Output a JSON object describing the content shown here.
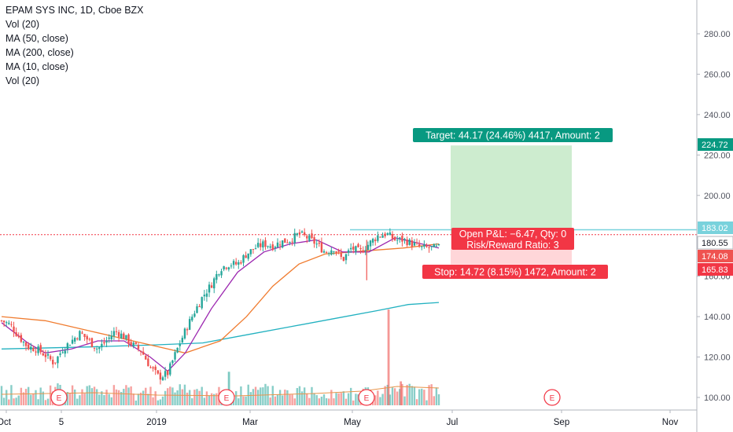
{
  "legend": {
    "title": "EPAM SYS INC, 1D, Cboe BZX",
    "items": [
      "Vol (20)",
      "MA (50, close)",
      "MA (200, close)",
      "MA (10, close)",
      "Vol (20)"
    ]
  },
  "colors": {
    "target": "#089981",
    "stop": "#f23645",
    "profit_zone": "#cdeccf",
    "loss_zone": "#ffd6d9",
    "up_candle": "#26a69a",
    "down_candle": "#ef5350",
    "ma50": "#f07c30",
    "ma200": "#22b1c0",
    "ma10": "#9c27b0",
    "vol_ma": "#e8944a",
    "entry_line": "#79d2dc"
  },
  "position": {
    "target_label": "Target: 44.17 (24.46%) 4417, Amount: 2",
    "pnl_label": "Open P&L: −6.47, Qty: 0",
    "rr_label": "Risk/Reward Ratio: 3",
    "stop_label": "Stop: 14.72 (8.15%) 1472, Amount: 2"
  },
  "chart_data": {
    "type": "candlestick",
    "title": "EPAM SYS INC, 1D, Cboe BZX",
    "y_axis": {
      "ticks": [
        "280.00",
        "260.00",
        "240.00",
        "220.00",
        "200.00",
        "160.00",
        "140.00",
        "120.00",
        "100.00"
      ],
      "ylim": [
        96,
        295
      ]
    },
    "x_axis": {
      "ticks": [
        "Oct",
        "5",
        "2019",
        "Mar",
        "May",
        "Jul",
        "Sep",
        "Nov"
      ]
    },
    "price_labels": [
      {
        "text": "224.72",
        "value": 224.72,
        "color": "#089981"
      },
      {
        "text": "183.02",
        "value": 183.02,
        "color": "#79d2dc"
      },
      {
        "text": "180.55",
        "value": 180.55,
        "color": "#ffffff"
      },
      {
        "text": "174.08",
        "value": 174.08,
        "color": "#ef5350"
      },
      {
        "text": "165.83",
        "value": 165.83,
        "color": "#f23645"
      }
    ],
    "position": {
      "entry": 180.55,
      "target": 224.72,
      "stop": 165.83,
      "current": 174.08
    },
    "close_path": [
      [
        0.0,
        138
      ],
      [
        0.02,
        136
      ],
      [
        0.04,
        130
      ],
      [
        0.06,
        125
      ],
      [
        0.08,
        124
      ],
      [
        0.1,
        121
      ],
      [
        0.12,
        117
      ],
      [
        0.14,
        124
      ],
      [
        0.16,
        128
      ],
      [
        0.18,
        132
      ],
      [
        0.2,
        128
      ],
      [
        0.22,
        124
      ],
      [
        0.24,
        128
      ],
      [
        0.26,
        133
      ],
      [
        0.28,
        130
      ],
      [
        0.3,
        126
      ],
      [
        0.32,
        123
      ],
      [
        0.34,
        115
      ],
      [
        0.36,
        110
      ],
      [
        0.38,
        112
      ],
      [
        0.4,
        123
      ],
      [
        0.42,
        133
      ],
      [
        0.44,
        142
      ],
      [
        0.46,
        150
      ],
      [
        0.48,
        156
      ],
      [
        0.5,
        164
      ],
      [
        0.52,
        166
      ],
      [
        0.54,
        166
      ],
      [
        0.56,
        171
      ],
      [
        0.58,
        174
      ],
      [
        0.6,
        176
      ],
      [
        0.62,
        175
      ],
      [
        0.64,
        177
      ],
      [
        0.66,
        178
      ],
      [
        0.68,
        181
      ],
      [
        0.7,
        179
      ],
      [
        0.72,
        176
      ],
      [
        0.74,
        172
      ],
      [
        0.76,
        174
      ],
      [
        0.78,
        168
      ],
      [
        0.8,
        174
      ],
      [
        0.82,
        172
      ],
      [
        0.84,
        176
      ],
      [
        0.86,
        180
      ],
      [
        0.88,
        181
      ],
      [
        0.9,
        178
      ],
      [
        0.92,
        178
      ],
      [
        0.94,
        176
      ],
      [
        0.96,
        174
      ],
      [
        1.0,
        174
      ]
    ],
    "ma50_path": [
      [
        0.0,
        140
      ],
      [
        0.1,
        138
      ],
      [
        0.2,
        133
      ],
      [
        0.3,
        128
      ],
      [
        0.38,
        124
      ],
      [
        0.42,
        122
      ],
      [
        0.5,
        128
      ],
      [
        0.56,
        140
      ],
      [
        0.62,
        155
      ],
      [
        0.68,
        166
      ],
      [
        0.74,
        171
      ],
      [
        0.8,
        172
      ],
      [
        0.86,
        173
      ],
      [
        0.92,
        174
      ],
      [
        1.0,
        176
      ]
    ],
    "ma200_path": [
      [
        0.0,
        124
      ],
      [
        0.2,
        125
      ],
      [
        0.35,
        126
      ],
      [
        0.46,
        127
      ],
      [
        0.56,
        131
      ],
      [
        0.66,
        135
      ],
      [
        0.76,
        139
      ],
      [
        0.86,
        143
      ],
      [
        0.93,
        146
      ],
      [
        1.0,
        147
      ]
    ],
    "ma10_path": [
      [
        0.0,
        137
      ],
      [
        0.06,
        127
      ],
      [
        0.1,
        122
      ],
      [
        0.16,
        124
      ],
      [
        0.22,
        128
      ],
      [
        0.28,
        128
      ],
      [
        0.34,
        120
      ],
      [
        0.38,
        113
      ],
      [
        0.42,
        122
      ],
      [
        0.48,
        144
      ],
      [
        0.54,
        162
      ],
      [
        0.6,
        172
      ],
      [
        0.66,
        176
      ],
      [
        0.72,
        178
      ],
      [
        0.78,
        172
      ],
      [
        0.84,
        172
      ],
      [
        0.9,
        179
      ],
      [
        0.96,
        176
      ],
      [
        1.0,
        174
      ]
    ],
    "volume_spikes": [
      [
        0.52,
        "up",
        0.35
      ],
      [
        0.885,
        "down",
        1.0
      ],
      [
        0.913,
        "down",
        0.25
      ]
    ],
    "earnings_markers": [
      {
        "text": "E",
        "date_frac": 0.13
      },
      {
        "text": "E",
        "date_frac": 0.515
      },
      {
        "text": "E",
        "date_frac": 0.83
      },
      {
        "text": "E",
        "date_frac": 1.25
      }
    ]
  }
}
